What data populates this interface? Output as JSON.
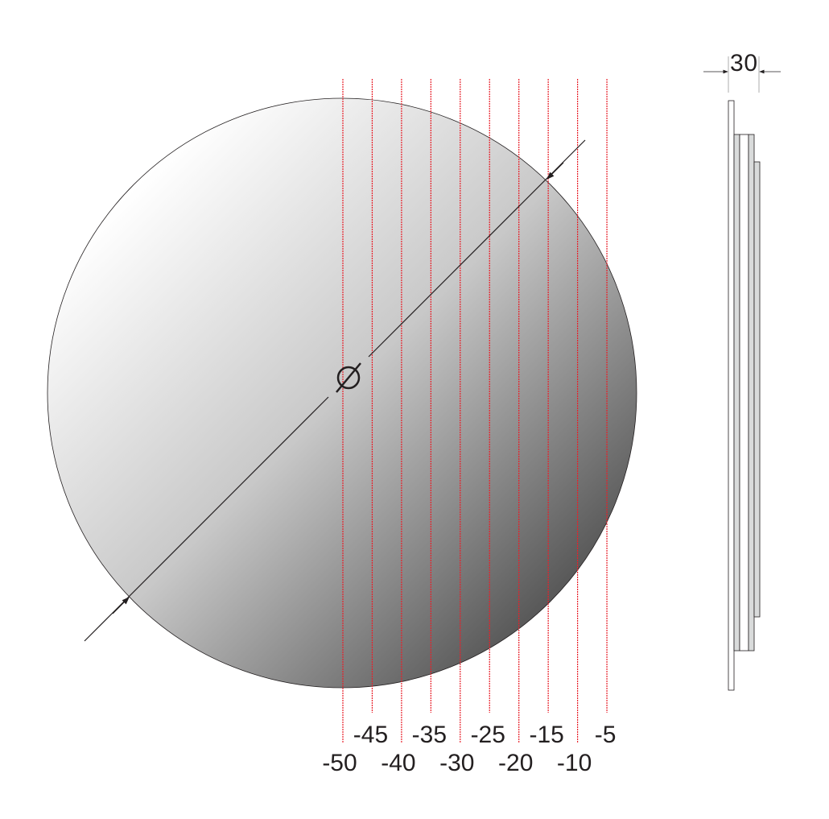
{
  "diagram": {
    "diameter_symbol": "Ø",
    "thickness_label": "30",
    "offset_labels_top": [
      "-45",
      "-35",
      "-25",
      "-15",
      "-5"
    ],
    "offset_labels_bottom": [
      "-50",
      "-40",
      "-30",
      "-20",
      "-10"
    ],
    "offsets": [
      -50,
      -45,
      -40,
      -35,
      -30,
      -25,
      -20,
      -15,
      -10,
      -5
    ],
    "colors": {
      "guide_line": "#e8202a",
      "outline": "#231f20",
      "gradient_light": "#ffffff",
      "gradient_dark": "#2a2a2a",
      "profile_fill": "#d9dbdb"
    }
  }
}
